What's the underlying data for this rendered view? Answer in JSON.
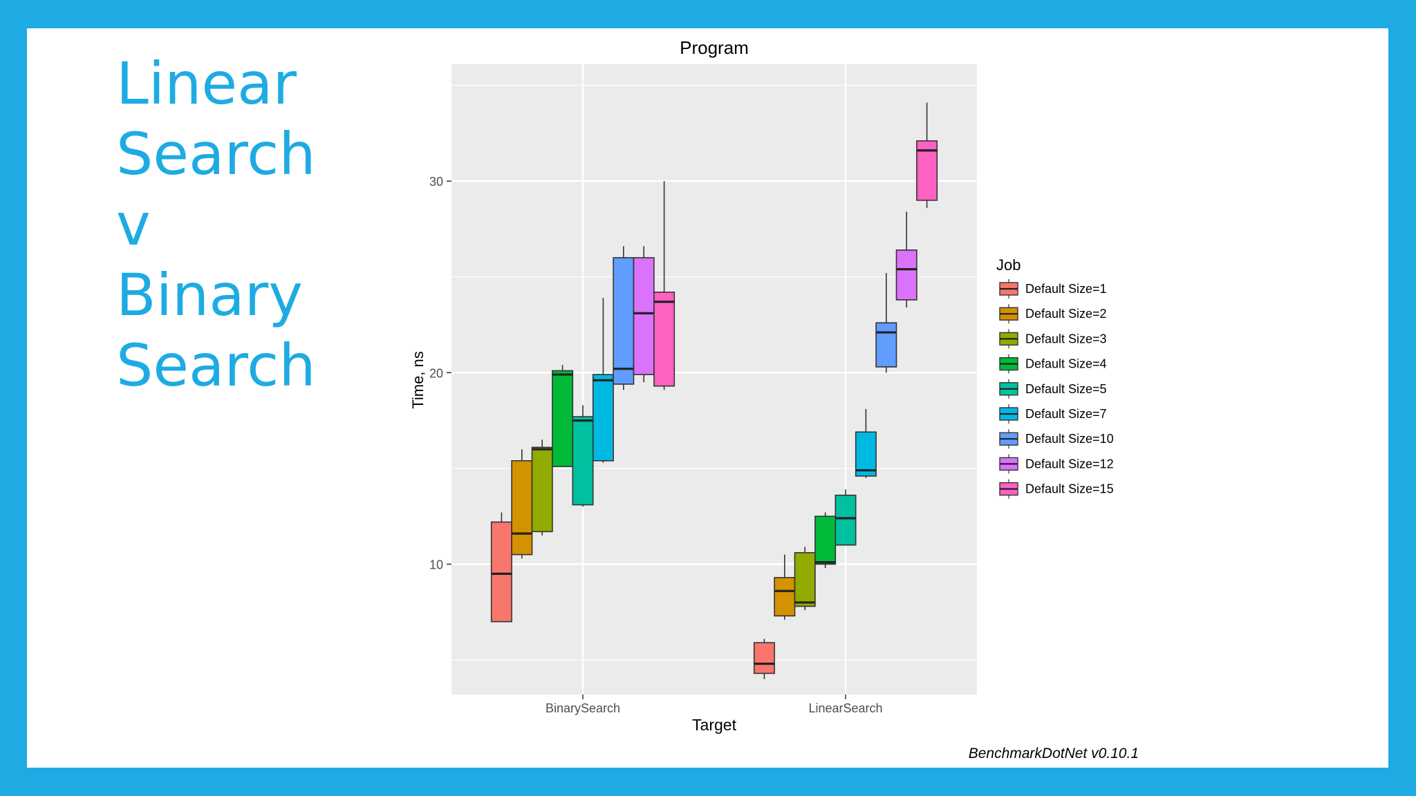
{
  "slide": {
    "title_lines": [
      "Linear",
      "Search",
      "v",
      "Binary",
      "Search"
    ],
    "background_color": "#1eabe3",
    "text_color": "#1eabe3"
  },
  "chart_data": {
    "type": "box",
    "title": "Program",
    "xlabel": "Target",
    "ylabel": "Time, ns",
    "categories": [
      "BinarySearch",
      "LinearSearch"
    ],
    "ylim": [
      3.2,
      36.1
    ],
    "yticks": [
      10,
      20,
      30
    ],
    "grid": true,
    "legend": {
      "title": "Job",
      "position": "right"
    },
    "caption": "BenchmarkDotNet v0.10.1",
    "series": [
      {
        "name": "Default Size=1",
        "color": "#f8766d",
        "boxes": [
          {
            "category": "BinarySearch",
            "min": 7.0,
            "q1": 7.0,
            "median": 9.5,
            "q3": 12.2,
            "max": 12.7
          },
          {
            "category": "LinearSearch",
            "min": 4.0,
            "q1": 4.3,
            "median": 4.8,
            "q3": 5.9,
            "max": 6.1
          }
        ]
      },
      {
        "name": "Default Size=2",
        "color": "#d39200",
        "boxes": [
          {
            "category": "BinarySearch",
            "min": 10.3,
            "q1": 10.5,
            "median": 11.6,
            "q3": 15.4,
            "max": 16.0
          },
          {
            "category": "LinearSearch",
            "min": 7.1,
            "q1": 7.3,
            "median": 8.6,
            "q3": 9.3,
            "max": 10.5
          }
        ]
      },
      {
        "name": "Default Size=3",
        "color": "#93aa00",
        "boxes": [
          {
            "category": "BinarySearch",
            "min": 11.5,
            "q1": 11.7,
            "median": 16.0,
            "q3": 16.1,
            "max": 16.5
          },
          {
            "category": "LinearSearch",
            "min": 7.6,
            "q1": 7.8,
            "median": 8.0,
            "q3": 10.6,
            "max": 10.9
          }
        ]
      },
      {
        "name": "Default Size=4",
        "color": "#00ba38",
        "boxes": [
          {
            "category": "BinarySearch",
            "min": 15.1,
            "q1": 15.1,
            "median": 19.9,
            "q3": 20.1,
            "max": 20.4
          },
          {
            "category": "LinearSearch",
            "min": 9.8,
            "q1": 10.0,
            "median": 10.1,
            "q3": 12.5,
            "max": 12.7
          }
        ]
      },
      {
        "name": "Default Size=5",
        "color": "#00c19f",
        "boxes": [
          {
            "category": "BinarySearch",
            "min": 13.0,
            "q1": 13.1,
            "median": 17.5,
            "q3": 17.7,
            "max": 18.3
          },
          {
            "category": "LinearSearch",
            "min": 11.0,
            "q1": 11.0,
            "median": 12.4,
            "q3": 13.6,
            "max": 13.9
          }
        ]
      },
      {
        "name": "Default Size=7",
        "color": "#00b9e3",
        "boxes": [
          {
            "category": "BinarySearch",
            "min": 15.3,
            "q1": 15.4,
            "median": 19.6,
            "q3": 19.9,
            "max": 23.9
          },
          {
            "category": "LinearSearch",
            "min": 14.5,
            "q1": 14.6,
            "median": 14.9,
            "q3": 16.9,
            "max": 18.1
          }
        ]
      },
      {
        "name": "Default Size=10",
        "color": "#619cff",
        "boxes": [
          {
            "category": "BinarySearch",
            "min": 19.1,
            "q1": 19.4,
            "median": 20.2,
            "q3": 26.0,
            "max": 26.6
          },
          {
            "category": "LinearSearch",
            "min": 20.0,
            "q1": 20.3,
            "median": 22.1,
            "q3": 22.6,
            "max": 25.2
          }
        ]
      },
      {
        "name": "Default Size=12",
        "color": "#db72fb",
        "boxes": [
          {
            "category": "BinarySearch",
            "min": 19.5,
            "q1": 19.9,
            "median": 23.1,
            "q3": 26.0,
            "max": 26.6
          },
          {
            "category": "LinearSearch",
            "min": 23.4,
            "q1": 23.8,
            "median": 25.4,
            "q3": 26.4,
            "max": 28.4
          }
        ]
      },
      {
        "name": "Default Size=15",
        "color": "#ff61c3",
        "boxes": [
          {
            "category": "BinarySearch",
            "min": 19.1,
            "q1": 19.3,
            "median": 23.7,
            "q3": 24.2,
            "max": 30.0
          },
          {
            "category": "LinearSearch",
            "min": 28.6,
            "q1": 29.0,
            "median": 31.6,
            "q3": 32.1,
            "max": 34.1
          }
        ]
      }
    ]
  }
}
